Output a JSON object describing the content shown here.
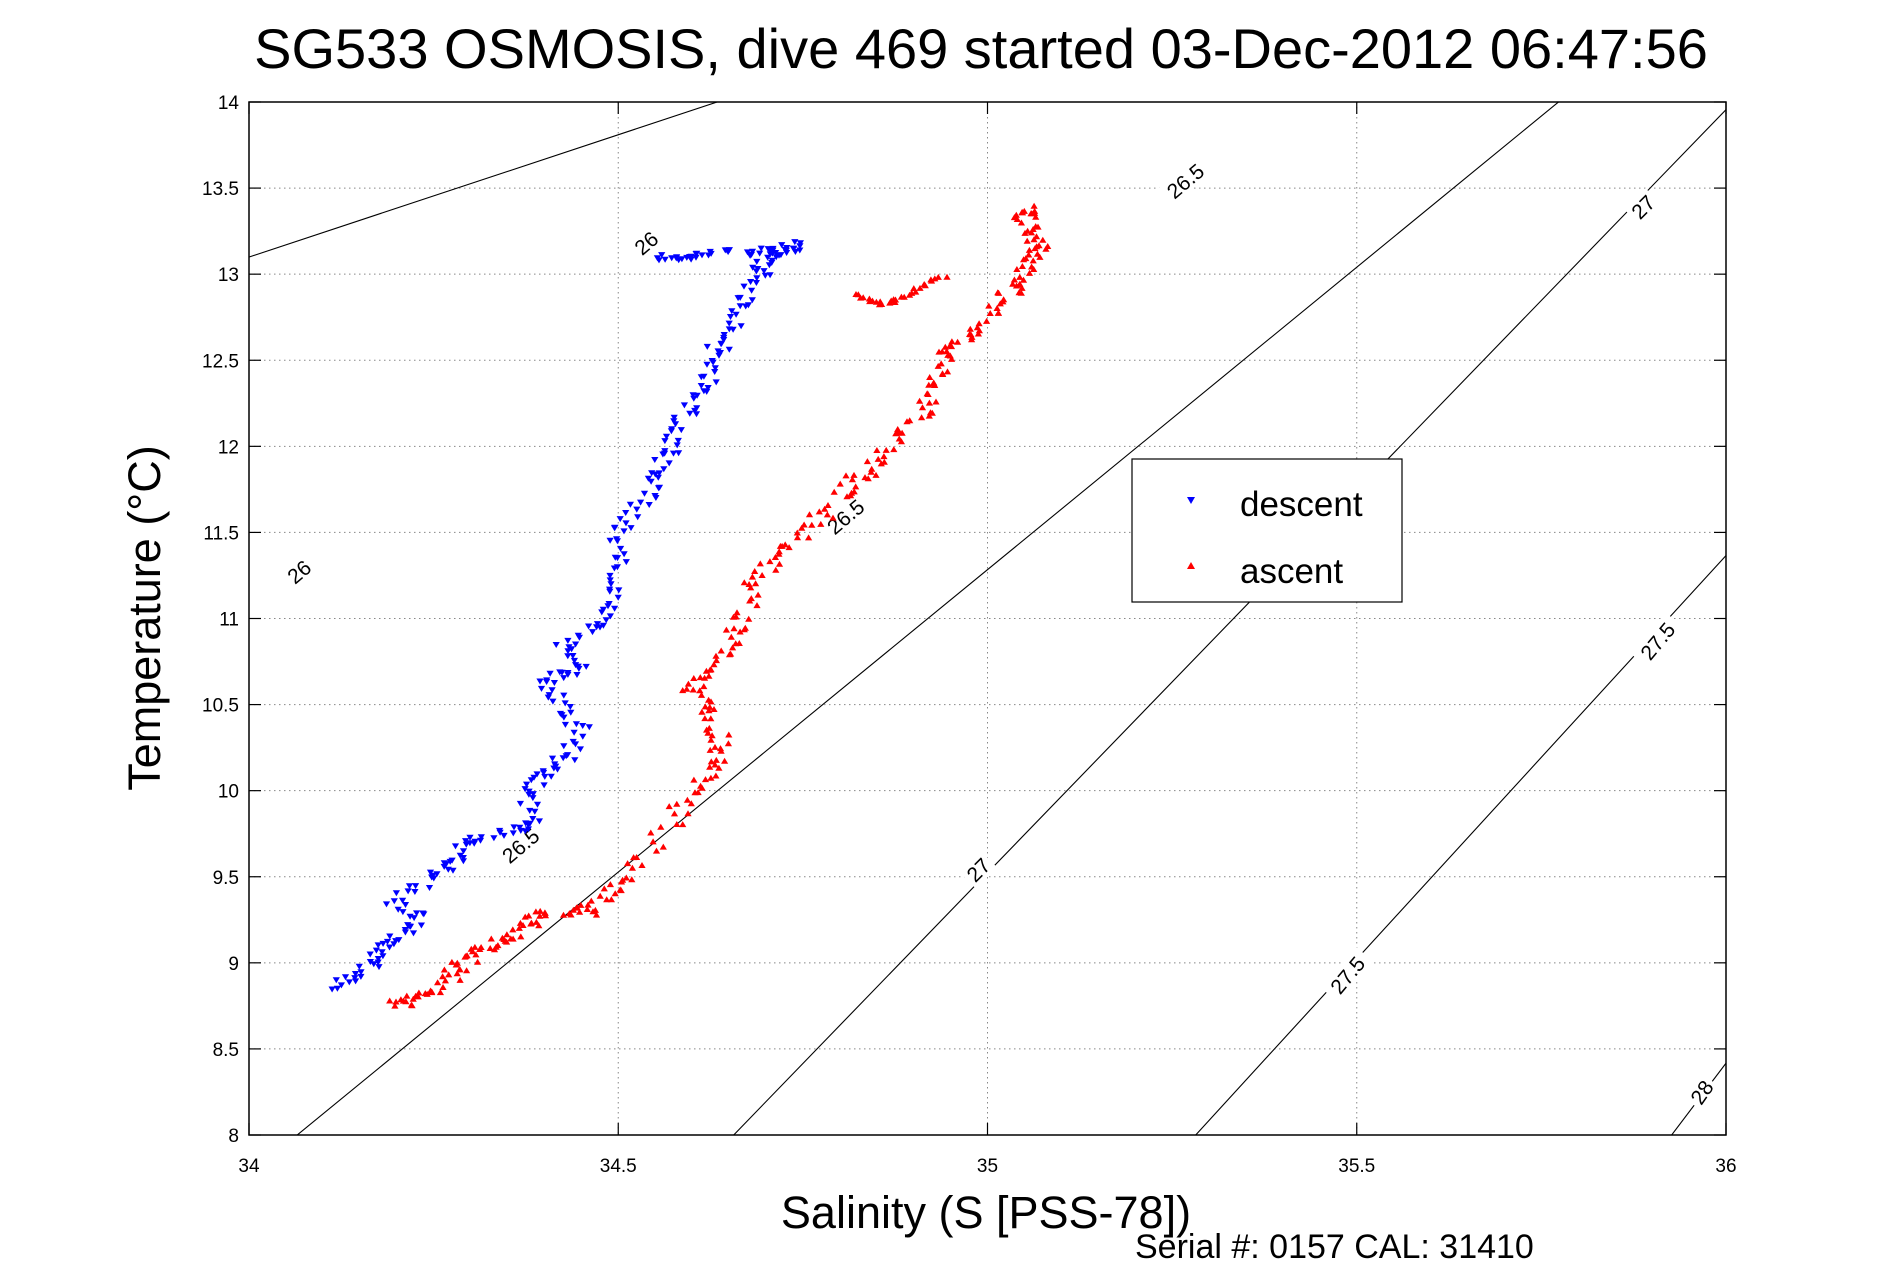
{
  "chart_data": {
    "type": "scatter",
    "title": "SG533 OSMOSIS, dive 469 started 03-Dec-2012 06:47:56",
    "xlabel": "Salinity (S [PSS-78])",
    "ylabel": "Temperature (°C)",
    "xlim": [
      34,
      36
    ],
    "ylim": [
      8,
      14
    ],
    "x_ticks": [
      "34",
      "34.5",
      "35",
      "35.5",
      "36"
    ],
    "y_ticks": [
      "8",
      "8.5",
      "9",
      "9.5",
      "10",
      "10.5",
      "11",
      "11.5",
      "12",
      "12.5",
      "13",
      "13.5",
      "14"
    ],
    "grid": true,
    "legend_position": "right",
    "footer": "Serial #: 0157  CAL: 31410",
    "density_contours": [
      {
        "label": "26",
        "points": [
          [
            33.93,
            13.0
          ],
          [
            35.07,
            14.62
          ]
        ]
      },
      {
        "label": "26.5",
        "points": [
          [
            33.98,
            7.7
          ],
          [
            35.83,
            14.2
          ]
        ]
      },
      {
        "label": "27",
        "points": [
          [
            34.6,
            7.75
          ],
          [
            36.01,
            14.0
          ]
        ]
      },
      {
        "label": "27.5",
        "points": [
          [
            35.25,
            7.85
          ],
          [
            36.05,
            11.6
          ]
        ]
      },
      {
        "label": "28",
        "points": [
          [
            35.9,
            7.85
          ],
          [
            36.05,
            8.7
          ]
        ]
      }
    ],
    "contour_labels": [
      {
        "text": "26",
        "x": 34.07,
        "y": 11.26,
        "rotation": -40
      },
      {
        "text": "26",
        "x": 34.54,
        "y": 13.17,
        "rotation": -40
      },
      {
        "text": "26.5",
        "x": 34.37,
        "y": 9.67,
        "rotation": -40
      },
      {
        "text": "26.5",
        "x": 34.81,
        "y": 11.58,
        "rotation": -40
      },
      {
        "text": "26.5",
        "x": 35.27,
        "y": 13.53,
        "rotation": -40
      },
      {
        "text": "27",
        "x": 34.99,
        "y": 9.53,
        "rotation": -45
      },
      {
        "text": "27",
        "x": 35.89,
        "y": 13.38,
        "rotation": -45
      },
      {
        "text": "27.5",
        "x": 35.49,
        "y": 8.92,
        "rotation": -50
      },
      {
        "text": "27.5",
        "x": 35.91,
        "y": 10.86,
        "rotation": -50
      },
      {
        "text": "28",
        "x": 35.97,
        "y": 8.24,
        "rotation": -55
      }
    ],
    "series": [
      {
        "name": "descent",
        "color": "#0000ff",
        "marker": "triangle-down",
        "path": [
          [
            34.12,
            8.85
          ],
          [
            34.15,
            8.95
          ],
          [
            34.18,
            9.05
          ],
          [
            34.2,
            9.15
          ],
          [
            34.23,
            9.25
          ],
          [
            34.2,
            9.35
          ],
          [
            34.25,
            9.5
          ],
          [
            34.28,
            9.6
          ],
          [
            34.3,
            9.7
          ],
          [
            34.35,
            9.75
          ],
          [
            34.38,
            9.8
          ],
          [
            34.38,
            10.0
          ],
          [
            34.4,
            10.1
          ],
          [
            34.43,
            10.2
          ],
          [
            34.45,
            10.35
          ],
          [
            34.42,
            10.5
          ],
          [
            34.4,
            10.65
          ],
          [
            34.45,
            10.7
          ],
          [
            34.43,
            10.85
          ],
          [
            34.47,
            10.95
          ],
          [
            34.5,
            11.1
          ],
          [
            34.5,
            11.3
          ],
          [
            34.5,
            11.5
          ],
          [
            34.53,
            11.65
          ],
          [
            34.55,
            11.8
          ],
          [
            34.57,
            11.95
          ],
          [
            34.58,
            12.1
          ],
          [
            34.6,
            12.25
          ],
          [
            34.62,
            12.4
          ],
          [
            34.63,
            12.55
          ],
          [
            34.66,
            12.7
          ],
          [
            34.67,
            12.85
          ],
          [
            34.69,
            13.0
          ],
          [
            34.7,
            13.1
          ],
          [
            34.72,
            13.15
          ],
          [
            34.75,
            13.17
          ],
          [
            34.68,
            13.12
          ],
          [
            34.62,
            13.12
          ],
          [
            34.58,
            13.1
          ],
          [
            34.55,
            13.1
          ]
        ]
      },
      {
        "name": "ascent",
        "color": "#ff0000",
        "marker": "triangle-up",
        "path": [
          [
            34.2,
            8.75
          ],
          [
            34.22,
            8.8
          ],
          [
            34.26,
            8.85
          ],
          [
            34.28,
            8.95
          ],
          [
            34.3,
            9.05
          ],
          [
            34.33,
            9.1
          ],
          [
            34.36,
            9.15
          ],
          [
            34.38,
            9.25
          ],
          [
            34.42,
            9.3
          ],
          [
            34.46,
            9.3
          ],
          [
            34.49,
            9.4
          ],
          [
            34.52,
            9.55
          ],
          [
            34.57,
            9.8
          ],
          [
            34.6,
            10.0
          ],
          [
            34.63,
            10.15
          ],
          [
            34.64,
            10.3
          ],
          [
            34.62,
            10.45
          ],
          [
            34.6,
            10.6
          ],
          [
            34.62,
            10.7
          ],
          [
            34.65,
            10.85
          ],
          [
            34.67,
            11.0
          ],
          [
            34.68,
            11.2
          ],
          [
            34.72,
            11.35
          ],
          [
            34.75,
            11.5
          ],
          [
            34.79,
            11.65
          ],
          [
            34.82,
            11.8
          ],
          [
            34.85,
            11.9
          ],
          [
            34.88,
            12.05
          ],
          [
            34.91,
            12.2
          ],
          [
            34.93,
            12.35
          ],
          [
            34.94,
            12.5
          ],
          [
            34.96,
            12.6
          ],
          [
            34.99,
            12.7
          ],
          [
            35.02,
            12.85
          ],
          [
            35.04,
            12.95
          ],
          [
            35.06,
            13.05
          ],
          [
            35.07,
            13.15
          ],
          [
            35.06,
            13.25
          ],
          [
            35.05,
            13.35
          ],
          [
            35.05,
            13.38
          ]
        ],
        "surface": [
          [
            34.82,
            12.88
          ],
          [
            34.84,
            12.84
          ],
          [
            34.86,
            12.83
          ],
          [
            34.88,
            12.85
          ],
          [
            34.9,
            12.9
          ],
          [
            34.92,
            12.95
          ],
          [
            34.95,
            13.0
          ]
        ]
      }
    ]
  }
}
